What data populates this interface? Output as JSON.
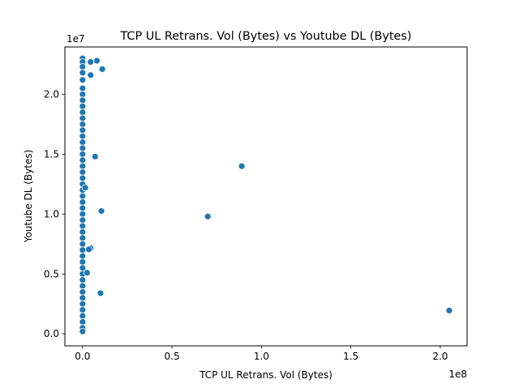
{
  "chart_data": {
    "type": "scatter",
    "title": "TCP UL Retrans. Vol (Bytes) vs Youtube DL (Bytes)",
    "xlabel": "TCP UL Retrans. Vol (Bytes)",
    "ylabel": "Youtube DL (Bytes)",
    "x_offset_label": "1e8",
    "y_offset_label": "1e7",
    "xlim": [
      -9900000,
      215000000
    ],
    "ylim": [
      -1000000,
      23950000
    ],
    "xticks": [
      0,
      50000000,
      100000000,
      150000000,
      200000000
    ],
    "xtick_labels": [
      "0.0",
      "0.5",
      "1.0",
      "1.5",
      "2.0"
    ],
    "yticks": [
      0,
      5000000,
      10000000,
      15000000,
      20000000
    ],
    "ytick_labels": [
      "0.0",
      "0.5",
      "1.0",
      "1.5",
      "2.0"
    ],
    "grid": false,
    "marker_color": "#1f77b4",
    "marker_edge_color": "#ffffff",
    "points": [
      {
        "x": 0,
        "y": 23000000
      },
      {
        "x": 0,
        "y": 22700000
      },
      {
        "x": 0,
        "y": 22300000
      },
      {
        "x": 0,
        "y": 21800000
      },
      {
        "x": 0,
        "y": 21200000
      },
      {
        "x": 0,
        "y": 20500000
      },
      {
        "x": 0,
        "y": 20000000
      },
      {
        "x": 0,
        "y": 19500000
      },
      {
        "x": 0,
        "y": 19000000
      },
      {
        "x": 0,
        "y": 18500000
      },
      {
        "x": 0,
        "y": 18000000
      },
      {
        "x": 0,
        "y": 17500000
      },
      {
        "x": 0,
        "y": 17000000
      },
      {
        "x": 0,
        "y": 16500000
      },
      {
        "x": 0,
        "y": 16000000
      },
      {
        "x": 0,
        "y": 15500000
      },
      {
        "x": 0,
        "y": 15000000
      },
      {
        "x": 0,
        "y": 14500000
      },
      {
        "x": 0,
        "y": 14000000
      },
      {
        "x": 0,
        "y": 13500000
      },
      {
        "x": 0,
        "y": 13000000
      },
      {
        "x": 0,
        "y": 12500000
      },
      {
        "x": 0,
        "y": 12000000
      },
      {
        "x": 0,
        "y": 11500000
      },
      {
        "x": 0,
        "y": 11000000
      },
      {
        "x": 0,
        "y": 10500000
      },
      {
        "x": 0,
        "y": 10000000
      },
      {
        "x": 0,
        "y": 9500000
      },
      {
        "x": 0,
        "y": 9000000
      },
      {
        "x": 0,
        "y": 8500000
      },
      {
        "x": 0,
        "y": 8000000
      },
      {
        "x": 0,
        "y": 7500000
      },
      {
        "x": 0,
        "y": 7000000
      },
      {
        "x": 0,
        "y": 6500000
      },
      {
        "x": 0,
        "y": 6000000
      },
      {
        "x": 0,
        "y": 5500000
      },
      {
        "x": 0,
        "y": 5000000
      },
      {
        "x": 0,
        "y": 4500000
      },
      {
        "x": 0,
        "y": 4000000
      },
      {
        "x": 0,
        "y": 3500000
      },
      {
        "x": 0,
        "y": 3000000
      },
      {
        "x": 0,
        "y": 2500000
      },
      {
        "x": 0,
        "y": 2000000
      },
      {
        "x": 0,
        "y": 1500000
      },
      {
        "x": 0,
        "y": 1000000
      },
      {
        "x": 0,
        "y": 500000
      },
      {
        "x": 0,
        "y": 200000
      },
      {
        "x": 4500000,
        "y": 22700000
      },
      {
        "x": 8000000,
        "y": 22800000
      },
      {
        "x": 4500000,
        "y": 21600000
      },
      {
        "x": 11000000,
        "y": 22100000
      },
      {
        "x": 7000000,
        "y": 14800000
      },
      {
        "x": 89000000,
        "y": 14000000
      },
      {
        "x": 10500000,
        "y": 10250000
      },
      {
        "x": 70000000,
        "y": 9800000
      },
      {
        "x": 4500000,
        "y": 7150000
      },
      {
        "x": 3500000,
        "y": 7050000
      },
      {
        "x": 2500000,
        "y": 5100000
      },
      {
        "x": 10000000,
        "y": 3400000
      },
      {
        "x": 205000000,
        "y": 1950000
      },
      {
        "x": 1500000,
        "y": 12200000
      }
    ]
  }
}
